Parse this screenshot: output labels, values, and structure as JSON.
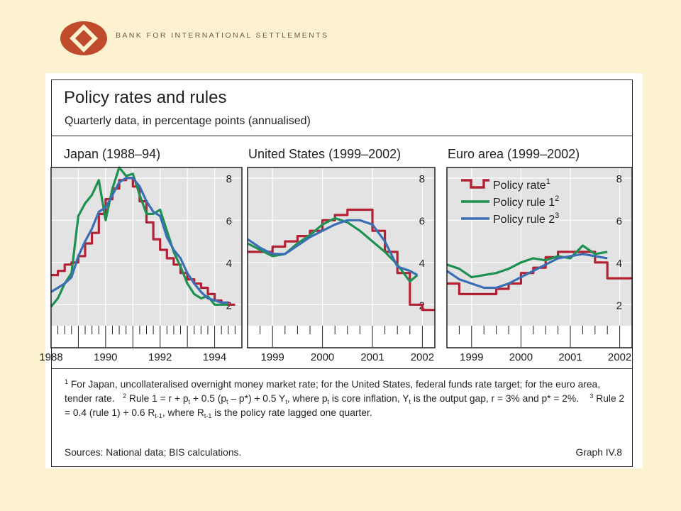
{
  "header": {
    "org_name": "BANK FOR INTERNATIONAL SETTLEMENTS"
  },
  "figure": {
    "title": "Policy rates and rules",
    "subtitle": "Quarterly data, in percentage points (annualised)",
    "graph_id": "Graph IV.8",
    "sources": "Sources: National data; BIS calculations.",
    "footnotes": {
      "n1": "1",
      "t1": " For Japan, uncollateralised overnight money market rate; for the United States, federal funds rate target; for the euro area, tender rate.",
      "n2": "2",
      "t2": " Rule 1 = r + p",
      "t2_sub1": "t",
      "t2_b": " + 0.5 (p",
      "t2_sub2": "t",
      "t2_c": " – p*) + 0.5 Y",
      "t2_sub3": "t",
      "t2_d": ", where p",
      "t2_sub4": "t",
      "t2_e": " is core inflation, Y",
      "t2_sub5": "t",
      "t2_f": " is the output gap, r = 3% and p* = 2%.",
      "n3": "3",
      "t3": " Rule 2 = 0.4 (rule 1) + 0.6 R",
      "t3_sub1": "t-1",
      "t3_b": ", where R",
      "t3_sub2": "t-1",
      "t3_c": " is the policy rate lagged one quarter."
    }
  },
  "legend": {
    "items": [
      {
        "label": "Policy rate",
        "sup": "1",
        "color": "#b22234"
      },
      {
        "label": "Policy rule 1",
        "sup": "2",
        "color": "#1e9150"
      },
      {
        "label": "Policy rule 2",
        "sup": "3",
        "color": "#3a6eb5"
      }
    ]
  },
  "chart_data": [
    {
      "type": "line",
      "title": "Japan (1988–94)",
      "xlim": [
        1988,
        1995
      ],
      "ylim": [
        1,
        8.5
      ],
      "yticks": [
        2,
        4,
        6,
        8
      ],
      "xtick_labels": [
        "1988",
        "1990",
        "1992",
        "1994"
      ],
      "xtick_values": [
        1988,
        1990,
        1992,
        1994
      ],
      "series": [
        {
          "name": "Policy rate",
          "kind": "step",
          "color": "#b22234",
          "x": [
            1988.0,
            1988.25,
            1988.5,
            1988.75,
            1989.0,
            1989.25,
            1989.5,
            1989.75,
            1990.0,
            1990.25,
            1990.5,
            1990.75,
            1991.0,
            1991.25,
            1991.5,
            1991.75,
            1992.0,
            1992.25,
            1992.5,
            1992.75,
            1993.0,
            1993.25,
            1993.5,
            1993.75,
            1994.0,
            1994.25,
            1994.5
          ],
          "y": [
            3.4,
            3.6,
            3.9,
            4.0,
            4.3,
            4.9,
            5.4,
            6.3,
            7.0,
            7.5,
            7.9,
            8.0,
            7.6,
            6.9,
            5.9,
            5.1,
            4.6,
            4.2,
            3.9,
            3.5,
            3.2,
            3.0,
            2.8,
            2.5,
            2.2,
            2.1,
            2.0
          ]
        },
        {
          "name": "Policy rule 1",
          "kind": "line",
          "color": "#1e9150",
          "x": [
            1988.0,
            1988.25,
            1988.5,
            1988.75,
            1989.0,
            1989.25,
            1989.5,
            1989.75,
            1990.0,
            1990.25,
            1990.5,
            1990.75,
            1991.0,
            1991.25,
            1991.5,
            1991.75,
            1992.0,
            1992.25,
            1992.5,
            1992.75,
            1993.0,
            1993.25,
            1993.5,
            1993.75,
            1994.0,
            1994.25,
            1994.5
          ],
          "y": [
            1.9,
            2.3,
            3.0,
            3.5,
            6.2,
            6.8,
            7.2,
            7.9,
            6.0,
            7.5,
            8.5,
            8.1,
            8.2,
            7.2,
            6.3,
            6.3,
            6.5,
            5.5,
            4.5,
            3.8,
            3.0,
            2.5,
            2.3,
            2.4,
            2.0,
            2.0,
            2.0
          ]
        },
        {
          "name": "Policy rule 2",
          "kind": "line",
          "color": "#3a6eb5",
          "x": [
            1988.0,
            1988.25,
            1988.5,
            1988.75,
            1989.0,
            1989.25,
            1989.5,
            1989.75,
            1990.0,
            1990.25,
            1990.5,
            1990.75,
            1991.0,
            1991.25,
            1991.5,
            1991.75,
            1992.0,
            1992.25,
            1992.5,
            1992.75,
            1993.0,
            1993.25,
            1993.5,
            1993.75,
            1994.0,
            1994.25,
            1994.5
          ],
          "y": [
            2.6,
            2.8,
            3.0,
            3.3,
            4.3,
            5.0,
            5.6,
            6.4,
            6.6,
            7.2,
            7.8,
            8.0,
            8.0,
            7.6,
            6.9,
            6.4,
            6.2,
            5.2,
            4.6,
            4.2,
            3.5,
            3.0,
            2.6,
            2.3,
            2.2,
            2.1,
            2.1
          ]
        }
      ]
    },
    {
      "type": "line",
      "title": "United States (1999–2002)",
      "xlim": [
        1998.5,
        2002.25
      ],
      "ylim": [
        1,
        8.5
      ],
      "yticks": [
        2,
        4,
        6,
        8
      ],
      "xtick_labels": [
        "1999",
        "2000",
        "2001",
        "2002"
      ],
      "xtick_values": [
        1999,
        2000,
        2001,
        2002
      ],
      "series": [
        {
          "name": "Policy rate",
          "kind": "step",
          "color": "#b22234",
          "x": [
            1998.5,
            1998.75,
            1999.0,
            1999.25,
            1999.5,
            1999.75,
            2000.0,
            2000.25,
            2000.5,
            2000.75,
            2001.0,
            2001.25,
            2001.5,
            2001.75,
            2002.0
          ],
          "y": [
            4.5,
            4.5,
            4.75,
            5.0,
            5.25,
            5.5,
            6.0,
            6.25,
            6.5,
            6.5,
            5.5,
            4.5,
            3.5,
            2.0,
            1.75
          ]
        },
        {
          "name": "Policy rule 1",
          "kind": "line",
          "color": "#1e9150",
          "x": [
            1998.5,
            1998.75,
            1999.0,
            1999.25,
            1999.5,
            1999.75,
            2000.0,
            2000.25,
            2000.5,
            2000.75,
            2001.0,
            2001.25,
            2001.5,
            2001.75,
            2001.9
          ],
          "y": [
            4.9,
            4.6,
            4.3,
            4.4,
            4.9,
            5.3,
            5.8,
            6.1,
            5.9,
            5.5,
            5.0,
            4.5,
            3.9,
            3.1,
            3.4
          ]
        },
        {
          "name": "Policy rule 2",
          "kind": "line",
          "color": "#3a6eb5",
          "x": [
            1998.5,
            1998.75,
            1999.0,
            1999.25,
            1999.5,
            1999.75,
            2000.0,
            2000.25,
            2000.5,
            2000.75,
            2001.0,
            2001.25,
            2001.5,
            2001.75,
            2001.9
          ],
          "y": [
            5.1,
            4.7,
            4.4,
            4.4,
            4.8,
            5.2,
            5.5,
            5.8,
            6.0,
            6.0,
            5.8,
            5.0,
            3.8,
            3.6,
            3.4
          ]
        }
      ]
    },
    {
      "type": "line",
      "title": "Euro area (1999–2002)",
      "xlim": [
        1998.5,
        2002.25
      ],
      "ylim": [
        1,
        8.5
      ],
      "yticks": [
        2,
        4,
        6,
        8
      ],
      "xtick_labels": [
        "1999",
        "2000",
        "2001",
        "2002"
      ],
      "xtick_values": [
        1999,
        2000,
        2001,
        2002
      ],
      "series": [
        {
          "name": "Policy rate",
          "kind": "step",
          "color": "#b22234",
          "x": [
            1998.5,
            1998.75,
            1999.0,
            1999.25,
            1999.5,
            1999.75,
            2000.0,
            2000.25,
            2000.5,
            2000.75,
            2001.0,
            2001.25,
            2001.5,
            2001.75,
            2002.0
          ],
          "y": [
            3.0,
            2.5,
            2.5,
            2.5,
            2.75,
            3.0,
            3.5,
            3.75,
            4.25,
            4.5,
            4.5,
            4.5,
            4.0,
            3.25,
            3.25
          ]
        },
        {
          "name": "Policy rule 1",
          "kind": "line",
          "color": "#1e9150",
          "x": [
            1998.5,
            1998.75,
            1999.0,
            1999.25,
            1999.5,
            1999.75,
            2000.0,
            2000.25,
            2000.5,
            2000.75,
            2001.0,
            2001.25,
            2001.5,
            2001.75
          ],
          "y": [
            3.9,
            3.7,
            3.3,
            3.4,
            3.5,
            3.7,
            4.0,
            4.2,
            4.1,
            4.3,
            4.2,
            4.8,
            4.4,
            4.5
          ]
        },
        {
          "name": "Policy rule 2",
          "kind": "line",
          "color": "#3a6eb5",
          "x": [
            1998.5,
            1998.75,
            1999.0,
            1999.25,
            1999.5,
            1999.75,
            2000.0,
            2000.25,
            2000.5,
            2000.75,
            2001.0,
            2001.25,
            2001.5,
            2001.75
          ],
          "y": [
            3.6,
            3.2,
            3.0,
            2.8,
            2.8,
            3.0,
            3.3,
            3.6,
            3.9,
            4.2,
            4.3,
            4.4,
            4.3,
            4.2
          ]
        }
      ]
    }
  ]
}
